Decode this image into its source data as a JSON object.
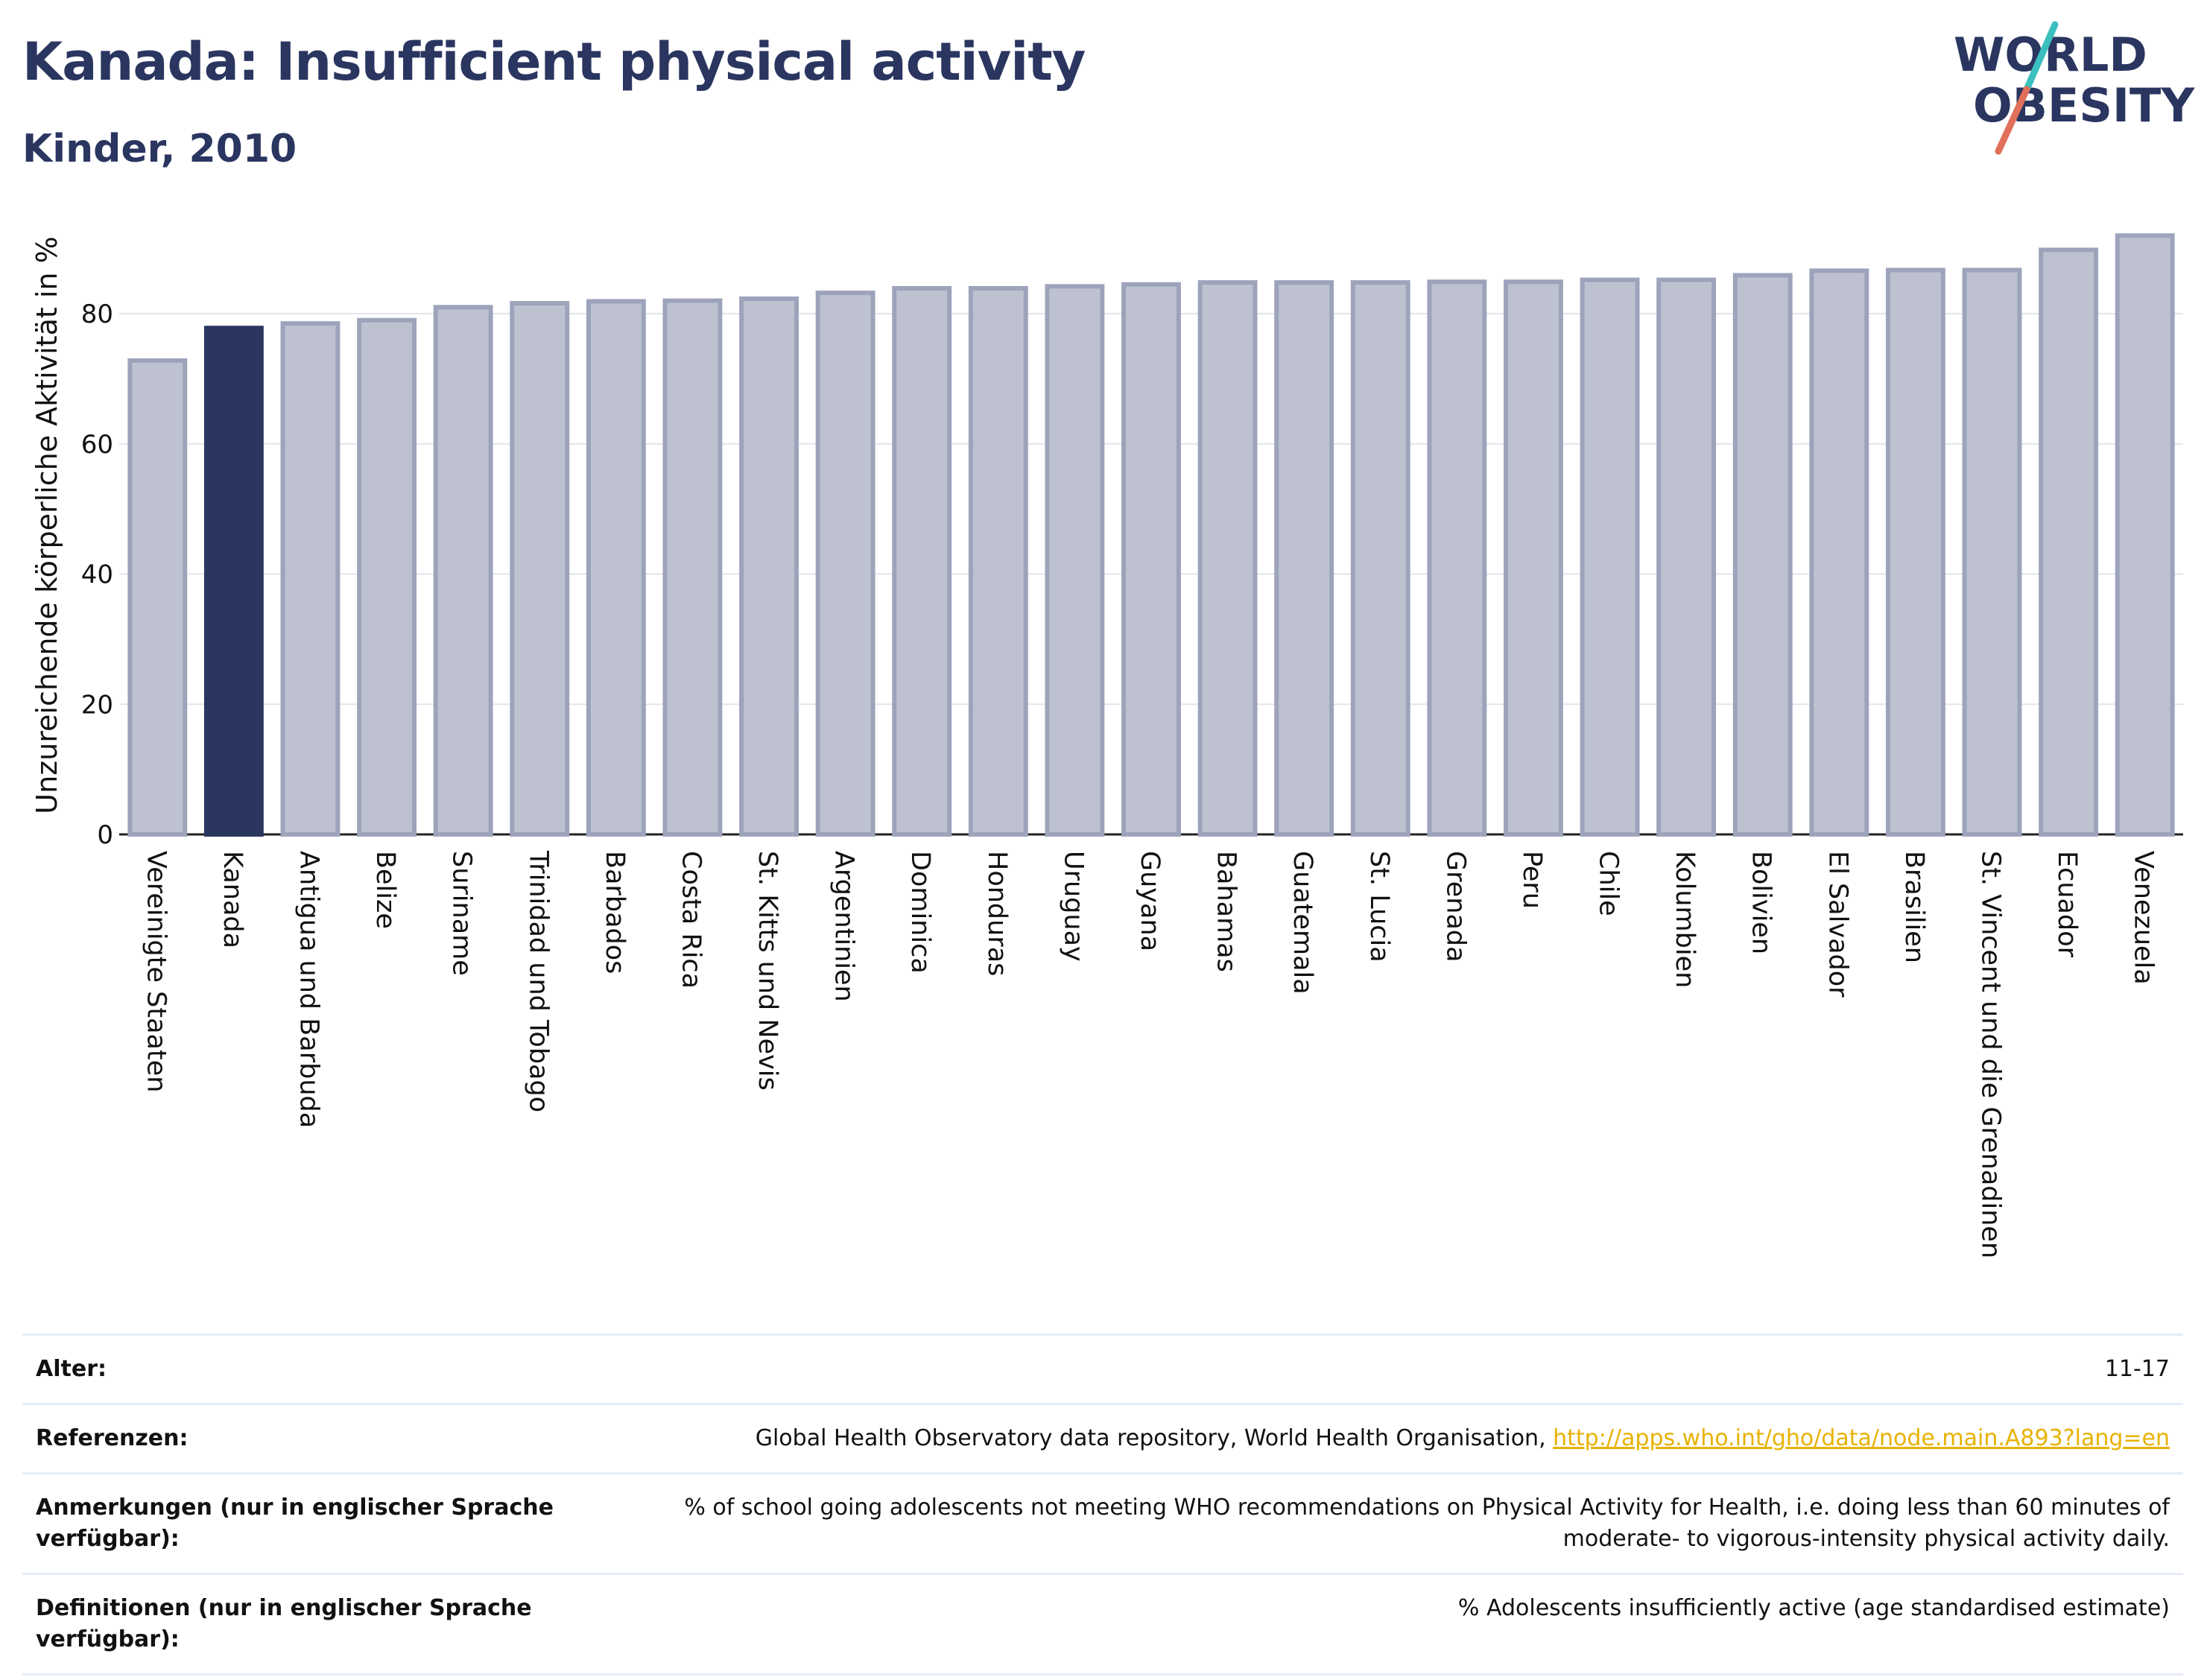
{
  "header": {
    "title": "Kanada: Insufficient physical activity",
    "subtitle": "Kinder, 2010"
  },
  "logo": {
    "line1": "WORLD",
    "line2": "OBESITY"
  },
  "colors": {
    "highlight": "#2a3560",
    "bar": "#bec2d0",
    "bar_stroke": "#9da3bb",
    "logo_teal": "#3bbfbf",
    "logo_coral": "#e0705a",
    "link": "#e8b200"
  },
  "chart_data": {
    "type": "bar",
    "title": "Kanada: Insufficient physical activity",
    "subtitle": "Kinder, 2010",
    "ylabel": "Unzureichende körperliche Aktivität in %",
    "xlabel": "",
    "ylim": [
      0,
      95
    ],
    "yticks": [
      0,
      20,
      40,
      60,
      80
    ],
    "grid": true,
    "highlight": "Kanada",
    "categories": [
      "Vereinigte Staaten",
      "Kanada",
      "Antigua und Barbuda",
      "Belize",
      "Suriname",
      "Trinidad und Tobago",
      "Barbados",
      "Costa Rica",
      "St. Kitts und Nevis",
      "Argentinien",
      "Dominica",
      "Honduras",
      "Uruguay",
      "Guyana",
      "Bahamas",
      "Guatemala",
      "St. Lucia",
      "Grenada",
      "Peru",
      "Chile",
      "Kolumbien",
      "Bolivien",
      "El Salvador",
      "Brasilien",
      "St. Vincent und die Grenadinen",
      "Ecuador",
      "Venezuela"
    ],
    "values": [
      72.8,
      77.8,
      78.5,
      79.0,
      81.0,
      81.6,
      81.9,
      82.0,
      82.3,
      83.2,
      83.9,
      83.9,
      84.2,
      84.5,
      84.8,
      84.8,
      84.8,
      84.9,
      84.9,
      85.2,
      85.2,
      85.9,
      86.6,
      86.7,
      86.7,
      89.8,
      92.0
    ]
  },
  "meta": {
    "age_label": "Alter:",
    "age_value": "11-17",
    "ref_label": "Referenzen:",
    "ref_text": "Global Health Observatory data repository, World Health Organisation, ",
    "ref_link": "http://apps.who.int/gho/data/node.main.A893?lang=en",
    "notes_label": "Anmerkungen (nur in englischer Sprache verfügbar):",
    "notes_value": "% of school going adolescents not meeting WHO recommendations on Physical Activity for Health, i.e. doing less than 60 minutes of moderate- to vigorous-intensity physical activity daily.",
    "def_label": "Definitionen (nur in englischer Sprache verfügbar):",
    "def_value": "% Adolescents insufficiently active (age standardised estimate)"
  }
}
